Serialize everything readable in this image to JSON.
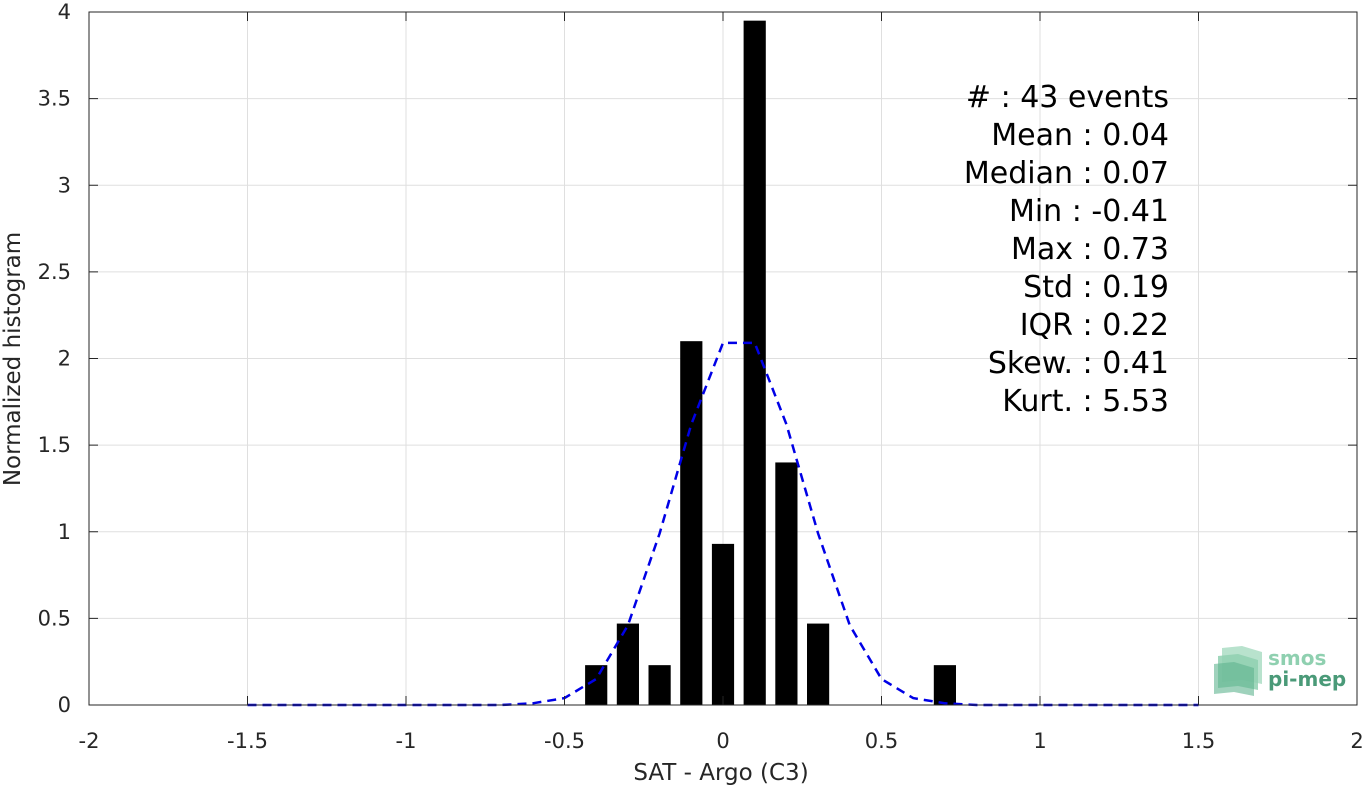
{
  "chart_data": {
    "type": "bar",
    "xlabel": "SAT - Argo (C3)",
    "ylabel": "Normalized histogram",
    "xlim": [
      -2,
      2
    ],
    "ylim": [
      0,
      4
    ],
    "grid": true,
    "x_ticks": [
      "-2",
      "-1.5",
      "-1",
      "-0.5",
      "0",
      "0.5",
      "1",
      "1.5",
      "2"
    ],
    "y_ticks": [
      "0",
      "0.5",
      "1",
      "1.5",
      "2",
      "2.5",
      "3",
      "3.5",
      "4"
    ],
    "bar_width": 0.07,
    "bar_color": "#000000",
    "bars": [
      {
        "x": -0.4,
        "value": 0.23
      },
      {
        "x": -0.3,
        "value": 0.47
      },
      {
        "x": -0.2,
        "value": 0.23
      },
      {
        "x": -0.1,
        "value": 2.1
      },
      {
        "x": 0.0,
        "value": 0.93
      },
      {
        "x": 0.1,
        "value": 3.95
      },
      {
        "x": 0.2,
        "value": 1.4
      },
      {
        "x": 0.3,
        "value": 0.47
      },
      {
        "x": 0.7,
        "value": 0.23
      }
    ],
    "fit_curve": {
      "style": "dashed",
      "color": "#0000e6",
      "points": [
        [
          -1.5,
          0.0
        ],
        [
          -1.4,
          0.0
        ],
        [
          -1.3,
          0.0
        ],
        [
          -1.2,
          0.0
        ],
        [
          -1.1,
          0.0
        ],
        [
          -1.0,
          0.0
        ],
        [
          -0.9,
          0.0
        ],
        [
          -0.8,
          0.0
        ],
        [
          -0.7,
          0.0
        ],
        [
          -0.6,
          0.01
        ],
        [
          -0.5,
          0.04
        ],
        [
          -0.4,
          0.15
        ],
        [
          -0.3,
          0.46
        ],
        [
          -0.2,
          0.99
        ],
        [
          -0.1,
          1.62
        ],
        [
          0.0,
          2.09
        ],
        [
          0.1,
          2.09
        ],
        [
          0.2,
          1.62
        ],
        [
          0.3,
          0.99
        ],
        [
          0.4,
          0.46
        ],
        [
          0.5,
          0.15
        ],
        [
          0.6,
          0.04
        ],
        [
          0.7,
          0.01
        ],
        [
          0.8,
          0.0
        ],
        [
          0.9,
          0.0
        ],
        [
          1.0,
          0.0
        ],
        [
          1.1,
          0.0
        ],
        [
          1.2,
          0.0
        ],
        [
          1.3,
          0.0
        ],
        [
          1.4,
          0.0
        ],
        [
          1.5,
          0.0
        ]
      ]
    },
    "annotations": [
      "#  : 43 events",
      "Mean : 0.04",
      "Median : 0.07",
      "Min : -0.41",
      "Max : 0.73",
      "Std : 0.19",
      "IQR : 0.22",
      "Skew. : 0.41",
      "Kurt. : 5.53"
    ]
  },
  "logo": {
    "line1": "smos",
    "line2": "pi-mep",
    "color_dark": "#4a9a78",
    "color_light": "#8fd0b0"
  }
}
